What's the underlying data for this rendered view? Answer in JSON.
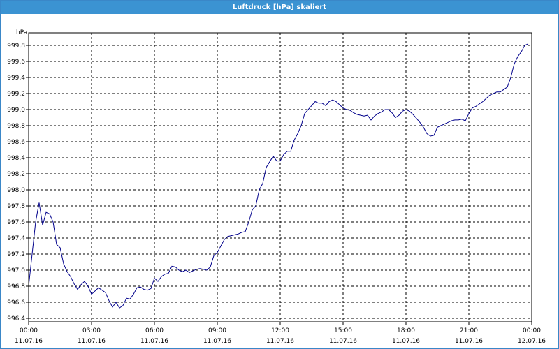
{
  "window": {
    "title": "Luftdruck [hPa] skaliert"
  },
  "chart_data": {
    "type": "line",
    "title": "Luftdruck [hPa] skaliert",
    "ylabel": "hPa",
    "ylim": [
      996.4,
      999.8
    ],
    "grid": true,
    "y_ticks": [
      "996,4",
      "996,6",
      "996,8",
      "997,0",
      "997,2",
      "997,4",
      "997,6",
      "997,8",
      "998,0",
      "998,2",
      "998,4",
      "998,6",
      "998,8",
      "999,0",
      "999,2",
      "999,4",
      "999,6",
      "999,8"
    ],
    "x_ticks": [
      {
        "time": "00:00",
        "date": "11.07.16"
      },
      {
        "time": "03:00",
        "date": "11.07.16"
      },
      {
        "time": "06:00",
        "date": "11.07.16"
      },
      {
        "time": "09:00",
        "date": "11.07.16"
      },
      {
        "time": "12:00",
        "date": "11.07.16"
      },
      {
        "time": "15:00",
        "date": "11.07.16"
      },
      {
        "time": "18:00",
        "date": "11.07.16"
      },
      {
        "time": "21:00",
        "date": "11.07.16"
      },
      {
        "time": "00:00",
        "date": "12.07.16"
      }
    ],
    "series": [
      {
        "color": "#00008b",
        "x": [
          "11.07.16 00:00",
          "11.07.16 00:10",
          "11.07.16 00:20",
          "11.07.16 00:30",
          "11.07.16 00:40",
          "11.07.16 00:50",
          "11.07.16 01:00",
          "11.07.16 01:10",
          "11.07.16 01:20",
          "11.07.16 01:30",
          "11.07.16 01:40",
          "11.07.16 01:50",
          "11.07.16 02:00",
          "11.07.16 02:10",
          "11.07.16 02:20",
          "11.07.16 02:30",
          "11.07.16 02:40",
          "11.07.16 02:50",
          "11.07.16 03:00",
          "11.07.16 03:10",
          "11.07.16 03:20",
          "11.07.16 03:30",
          "11.07.16 03:40",
          "11.07.16 03:50",
          "11.07.16 04:00",
          "11.07.16 04:10",
          "11.07.16 04:20",
          "11.07.16 04:30",
          "11.07.16 04:40",
          "11.07.16 04:50",
          "11.07.16 05:00",
          "11.07.16 05:10",
          "11.07.16 05:20",
          "11.07.16 05:30",
          "11.07.16 05:40",
          "11.07.16 05:50",
          "11.07.16 06:00",
          "11.07.16 06:10",
          "11.07.16 06:20",
          "11.07.16 06:30",
          "11.07.16 06:40",
          "11.07.16 06:50",
          "11.07.16 07:00",
          "11.07.16 07:10",
          "11.07.16 07:20",
          "11.07.16 07:30",
          "11.07.16 07:40",
          "11.07.16 07:50",
          "11.07.16 08:00",
          "11.07.16 08:10",
          "11.07.16 08:20",
          "11.07.16 08:30",
          "11.07.16 08:40",
          "11.07.16 08:50",
          "11.07.16 09:00",
          "11.07.16 09:10",
          "11.07.16 09:20",
          "11.07.16 09:30",
          "11.07.16 09:40",
          "11.07.16 09:50",
          "11.07.16 10:00",
          "11.07.16 10:10",
          "11.07.16 10:20",
          "11.07.16 10:30",
          "11.07.16 10:40",
          "11.07.16 10:50",
          "11.07.16 11:00",
          "11.07.16 11:10",
          "11.07.16 11:20",
          "11.07.16 11:30",
          "11.07.16 11:40",
          "11.07.16 11:50",
          "11.07.16 12:00",
          "11.07.16 12:10",
          "11.07.16 12:20",
          "11.07.16 12:30",
          "11.07.16 12:40",
          "11.07.16 12:50",
          "11.07.16 13:00",
          "11.07.16 13:10",
          "11.07.16 13:20",
          "11.07.16 13:30",
          "11.07.16 13:40",
          "11.07.16 13:50",
          "11.07.16 14:00",
          "11.07.16 14:10",
          "11.07.16 14:20",
          "11.07.16 14:30",
          "11.07.16 14:40",
          "11.07.16 14:50",
          "11.07.16 15:00",
          "11.07.16 15:10",
          "11.07.16 15:20",
          "11.07.16 15:30",
          "11.07.16 15:40",
          "11.07.16 15:50",
          "11.07.16 16:00",
          "11.07.16 16:10",
          "11.07.16 16:20",
          "11.07.16 16:30",
          "11.07.16 16:40",
          "11.07.16 16:50",
          "11.07.16 17:00",
          "11.07.16 17:10",
          "11.07.16 17:20",
          "11.07.16 17:30",
          "11.07.16 17:40",
          "11.07.16 17:50",
          "11.07.16 18:00",
          "11.07.16 18:10",
          "11.07.16 18:20",
          "11.07.16 18:30",
          "11.07.16 18:40",
          "11.07.16 18:50",
          "11.07.16 19:00",
          "11.07.16 19:10",
          "11.07.16 19:20",
          "11.07.16 19:30",
          "11.07.16 19:40",
          "11.07.16 19:50",
          "11.07.16 20:00",
          "11.07.16 20:10",
          "11.07.16 20:20",
          "11.07.16 20:30",
          "11.07.16 20:40",
          "11.07.16 20:50",
          "11.07.16 21:00",
          "11.07.16 21:10",
          "11.07.16 21:20",
          "11.07.16 21:30",
          "11.07.16 21:40",
          "11.07.16 21:50",
          "11.07.16 22:00",
          "11.07.16 22:10",
          "11.07.16 22:20",
          "11.07.16 22:30",
          "11.07.16 22:40",
          "11.07.16 22:50",
          "11.07.16 23:00",
          "11.07.16 23:10",
          "11.07.16 23:20",
          "11.07.16 23:30",
          "11.07.16 23:40",
          "11.07.16 23:50"
        ],
        "y": [
          996.8,
          997.2,
          997.6,
          997.84,
          997.56,
          997.72,
          997.7,
          997.6,
          997.32,
          997.28,
          997.08,
          996.98,
          996.92,
          996.83,
          996.76,
          996.82,
          996.86,
          996.8,
          996.7,
          996.74,
          996.78,
          996.75,
          996.72,
          996.62,
          996.54,
          996.6,
          996.53,
          996.56,
          996.65,
          996.64,
          996.7,
          996.78,
          996.79,
          996.76,
          996.75,
          996.77,
          996.9,
          996.86,
          996.92,
          996.95,
          996.96,
          997.05,
          997.04,
          997.0,
          996.98,
          997.0,
          996.97,
          996.99,
          997.01,
          997.02,
          997.01,
          997.0,
          997.04,
          997.18,
          997.22,
          997.3,
          997.38,
          997.42,
          997.43,
          997.44,
          997.45,
          997.47,
          997.48,
          997.6,
          997.75,
          997.8,
          998.0,
          998.08,
          998.28,
          998.35,
          998.42,
          998.36,
          998.36,
          998.44,
          998.48,
          998.48,
          998.62,
          998.7,
          998.8,
          998.95,
          999.0,
          999.05,
          999.1,
          999.08,
          999.08,
          999.05,
          999.1,
          999.12,
          999.1,
          999.06,
          999.02,
          999.0,
          998.99,
          998.96,
          998.94,
          998.93,
          998.92,
          998.93,
          998.87,
          998.92,
          998.95,
          998.97,
          999.0,
          999.0,
          998.96,
          998.9,
          998.93,
          998.98,
          999.0,
          998.98,
          998.94,
          998.89,
          998.84,
          998.78,
          998.7,
          998.67,
          998.68,
          998.78,
          998.8,
          998.82,
          998.84,
          998.86,
          998.87,
          998.87,
          998.88,
          998.86,
          998.95,
          999.02,
          999.04,
          999.07,
          999.1,
          999.14,
          999.18,
          999.2,
          999.22,
          999.22,
          999.25,
          999.28,
          999.4,
          999.57,
          999.66,
          999.72,
          999.8,
          999.82
        ]
      }
    ]
  }
}
